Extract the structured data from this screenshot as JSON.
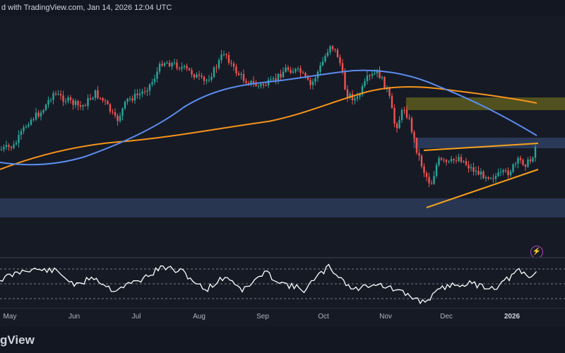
{
  "header": {
    "text": "d with TradingView.com, Jan 14, 2026 12:04 UTC"
  },
  "x_axis": {
    "labels": [
      "May",
      "Jun",
      "Jul",
      "Aug",
      "Sep",
      "Oct",
      "Nov",
      "Dec",
      "2026"
    ]
  },
  "footer": {
    "brand": "gView"
  },
  "icons": {
    "lightning": "lightning-icon"
  },
  "colors": {
    "background": "#161a25",
    "up_candle": "#26a69a",
    "down_candle": "#ef5350",
    "ma_fast": "#5b8def",
    "ma_slow": "#f7931a",
    "trendline": "#f7a21b",
    "resistance_zone": "#6b6b1f",
    "support_zone": "#3a4a6b",
    "rsi_line": "#ffffff"
  }
}
